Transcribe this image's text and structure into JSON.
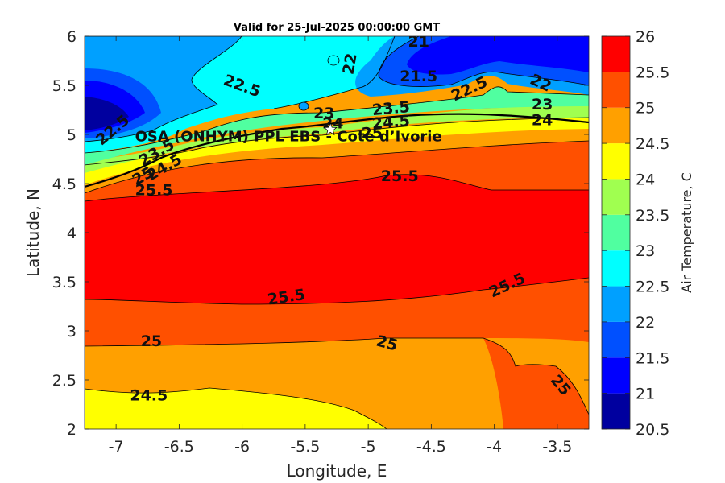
{
  "chart_data": {
    "type": "heatmap",
    "subtype": "filled-contour",
    "title": "Valid for 25-Jul-2025 00:00:00 GMT",
    "xlabel": "Longitude, E",
    "ylabel": "Latitude, N",
    "xlim": [
      -7.25,
      -3.25
    ],
    "ylim": [
      2,
      6
    ],
    "xticks": [
      -7,
      -6.5,
      -6,
      -5.5,
      -5,
      -4.5,
      -4,
      -3.5
    ],
    "yticks": [
      2,
      2.5,
      3,
      3.5,
      4,
      4.5,
      5,
      5.5,
      6
    ],
    "grid": false,
    "colorbar": {
      "label": "Air Temperature, C",
      "levels": [
        20.5,
        21,
        21.5,
        22,
        22.5,
        23,
        23.5,
        24,
        24.5,
        25,
        25.5,
        26
      ],
      "colors": [
        "#00009f",
        "#0000ff",
        "#0050ff",
        "#00a0ff",
        "#00ffff",
        "#50ffa0",
        "#a0ff50",
        "#ffff00",
        "#ffa000",
        "#ff5000",
        "#ff0000",
        "#a00000"
      ]
    },
    "site": {
      "label": "OSA (ONHYM) PPL EBS - Cote d’Ivorie",
      "lon": -5.3,
      "lat": 5.05
    },
    "contour_labels": [
      {
        "text": "21",
        "lon": -4.6,
        "lat": 5.95
      },
      {
        "text": "22",
        "lon": -5.15,
        "lat": 5.72,
        "rot": -80
      },
      {
        "text": "21.5",
        "lon": -4.6,
        "lat": 5.6
      },
      {
        "text": "22.5",
        "lon": -6.0,
        "lat": 5.5,
        "rot": 20
      },
      {
        "text": "22.5",
        "lon": -4.2,
        "lat": 5.47,
        "rot": -25
      },
      {
        "text": "22",
        "lon": -3.63,
        "lat": 5.53,
        "rot": 25
      },
      {
        "text": "23",
        "lon": -3.62,
        "lat": 5.31
      },
      {
        "text": "24",
        "lon": -3.62,
        "lat": 5.15
      },
      {
        "text": "23",
        "lon": -5.35,
        "lat": 5.22
      },
      {
        "text": "24",
        "lon": -5.28,
        "lat": 5.12
      },
      {
        "text": "23.5",
        "lon": -4.82,
        "lat": 5.27,
        "rot": -5
      },
      {
        "text": "24.5",
        "lon": -4.82,
        "lat": 5.13,
        "rot": -5
      },
      {
        "text": "25",
        "lon": -4.97,
        "lat": 5.02
      },
      {
        "text": "22.5",
        "lon": -7.03,
        "lat": 5.05,
        "rot": -40
      },
      {
        "text": "23.5",
        "lon": -6.68,
        "lat": 4.82,
        "rot": -30
      },
      {
        "text": "24.5",
        "lon": -6.62,
        "lat": 4.67,
        "rot": -30
      },
      {
        "text": "25",
        "lon": -6.79,
        "lat": 4.58,
        "rot": -30
      },
      {
        "text": "25.5",
        "lon": -6.7,
        "lat": 4.44
      },
      {
        "text": "25.5",
        "lon": -4.75,
        "lat": 4.58
      },
      {
        "text": "25.5",
        "lon": -5.65,
        "lat": 3.35,
        "rot": -8
      },
      {
        "text": "25.5",
        "lon": -3.9,
        "lat": 3.47,
        "rot": -25
      },
      {
        "text": "25",
        "lon": -6.72,
        "lat": 2.9
      },
      {
        "text": "25",
        "lon": -4.85,
        "lat": 2.88,
        "rot": 15
      },
      {
        "text": "25",
        "lon": -3.47,
        "lat": 2.45,
        "rot": 50
      },
      {
        "text": "24.5",
        "lon": -6.74,
        "lat": 2.35
      }
    ]
  }
}
